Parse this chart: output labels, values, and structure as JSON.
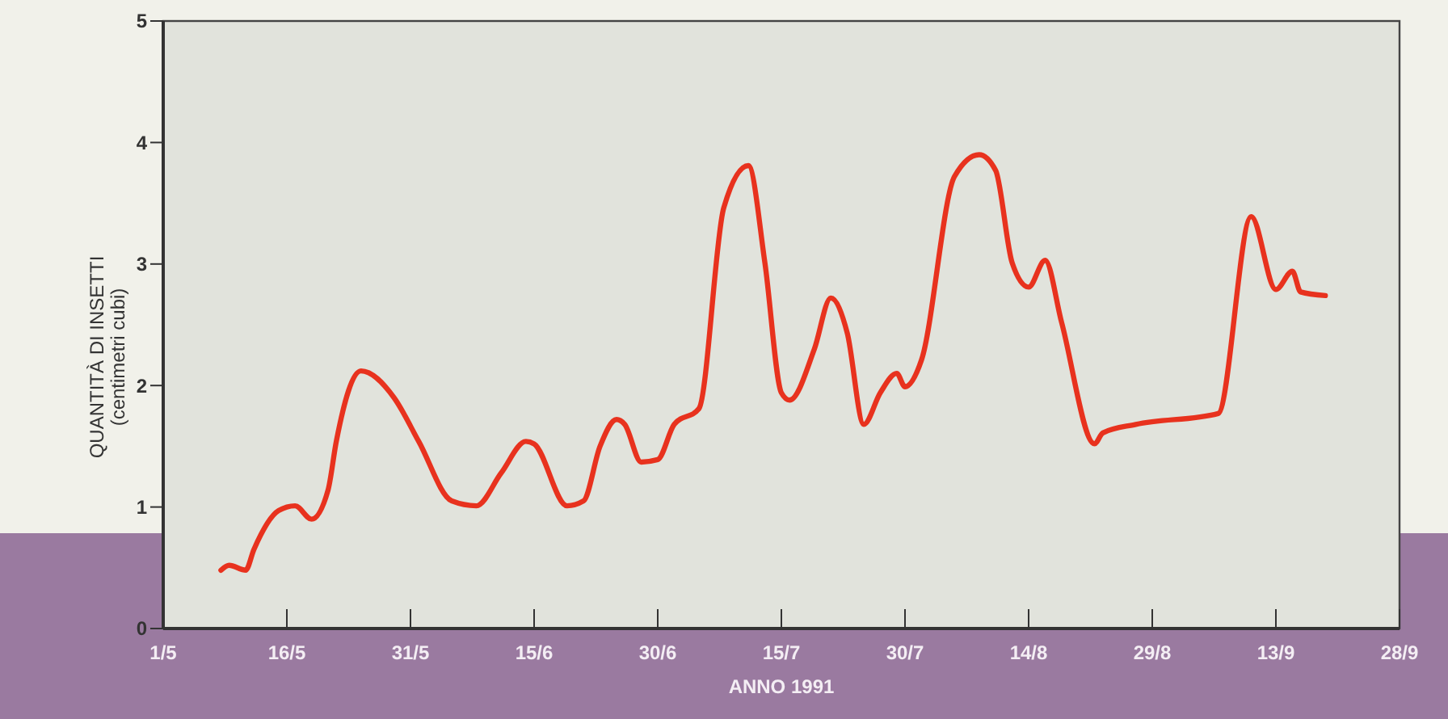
{
  "chart_data": {
    "type": "line",
    "xlabel": "ANNO 1991",
    "ylabel": "QUANTITÀ DI INSETTI\n(centimetri cubi)",
    "x": [
      "1991-05-08",
      "1991-05-09",
      "1991-05-11",
      "1991-05-12",
      "1991-05-15",
      "1991-05-17",
      "1991-05-19",
      "1991-05-21",
      "1991-05-22",
      "1991-05-25",
      "1991-05-29",
      "1991-06-01",
      "1991-06-05",
      "1991-06-08",
      "1991-06-11",
      "1991-06-14",
      "1991-06-15",
      "1991-06-19",
      "1991-06-21",
      "1991-06-23",
      "1991-06-25",
      "1991-06-26",
      "1991-06-28",
      "1991-06-30",
      "1991-07-02",
      "1991-07-05",
      "1991-07-08",
      "1991-07-11",
      "1991-07-13",
      "1991-07-15",
      "1991-07-16",
      "1991-07-19",
      "1991-07-21",
      "1991-07-23",
      "1991-07-25",
      "1991-07-27",
      "1991-07-29",
      "1991-07-30",
      "1991-08-01",
      "1991-08-05",
      "1991-08-08",
      "1991-08-10",
      "1991-08-12",
      "1991-08-14",
      "1991-08-16",
      "1991-08-18",
      "1991-08-22",
      "1991-08-23",
      "1991-08-27",
      "1991-09-06",
      "1991-09-10",
      "1991-09-13",
      "1991-09-15",
      "1991-09-16",
      "1991-09-19"
    ],
    "series": [
      {
        "color": "#e8321e",
        "values": [
          0.48,
          0.52,
          0.48,
          0.65,
          0.97,
          1.01,
          0.9,
          1.14,
          1.54,
          2.12,
          1.9,
          1.54,
          1.05,
          1.01,
          1.28,
          1.54,
          1.52,
          1.01,
          1.05,
          1.5,
          1.72,
          1.68,
          1.37,
          1.39,
          1.68,
          1.81,
          3.46,
          3.81,
          3.01,
          1.94,
          1.88,
          2.3,
          2.72,
          2.43,
          1.68,
          1.94,
          2.1,
          1.99,
          2.21,
          3.72,
          3.9,
          3.77,
          3.01,
          2.81,
          3.03,
          2.52,
          1.52,
          1.61,
          1.68,
          1.77,
          3.39,
          2.79,
          2.94,
          2.77,
          2.74
        ]
      }
    ],
    "xlim": [
      "1991-05-01",
      "1991-09-28"
    ],
    "xticks": [
      {
        "value": "1991-05-01",
        "label": "1/5"
      },
      {
        "value": "1991-05-16",
        "label": "16/5"
      },
      {
        "value": "1991-05-31",
        "label": "31/5"
      },
      {
        "value": "1991-06-15",
        "label": "15/6"
      },
      {
        "value": "1991-06-30",
        "label": "30/6"
      },
      {
        "value": "1991-07-15",
        "label": "15/7"
      },
      {
        "value": "1991-07-30",
        "label": "30/7"
      },
      {
        "value": "1991-08-14",
        "label": "14/8"
      },
      {
        "value": "1991-08-29",
        "label": "29/8"
      },
      {
        "value": "1991-09-13",
        "label": "13/9"
      },
      {
        "value": "1991-09-28",
        "label": "28/9"
      }
    ],
    "ylim": [
      0,
      5
    ],
    "yticks": [
      0,
      1,
      2,
      3,
      4,
      5
    ],
    "grid": false,
    "marker": "none",
    "line_style": "solid"
  }
}
